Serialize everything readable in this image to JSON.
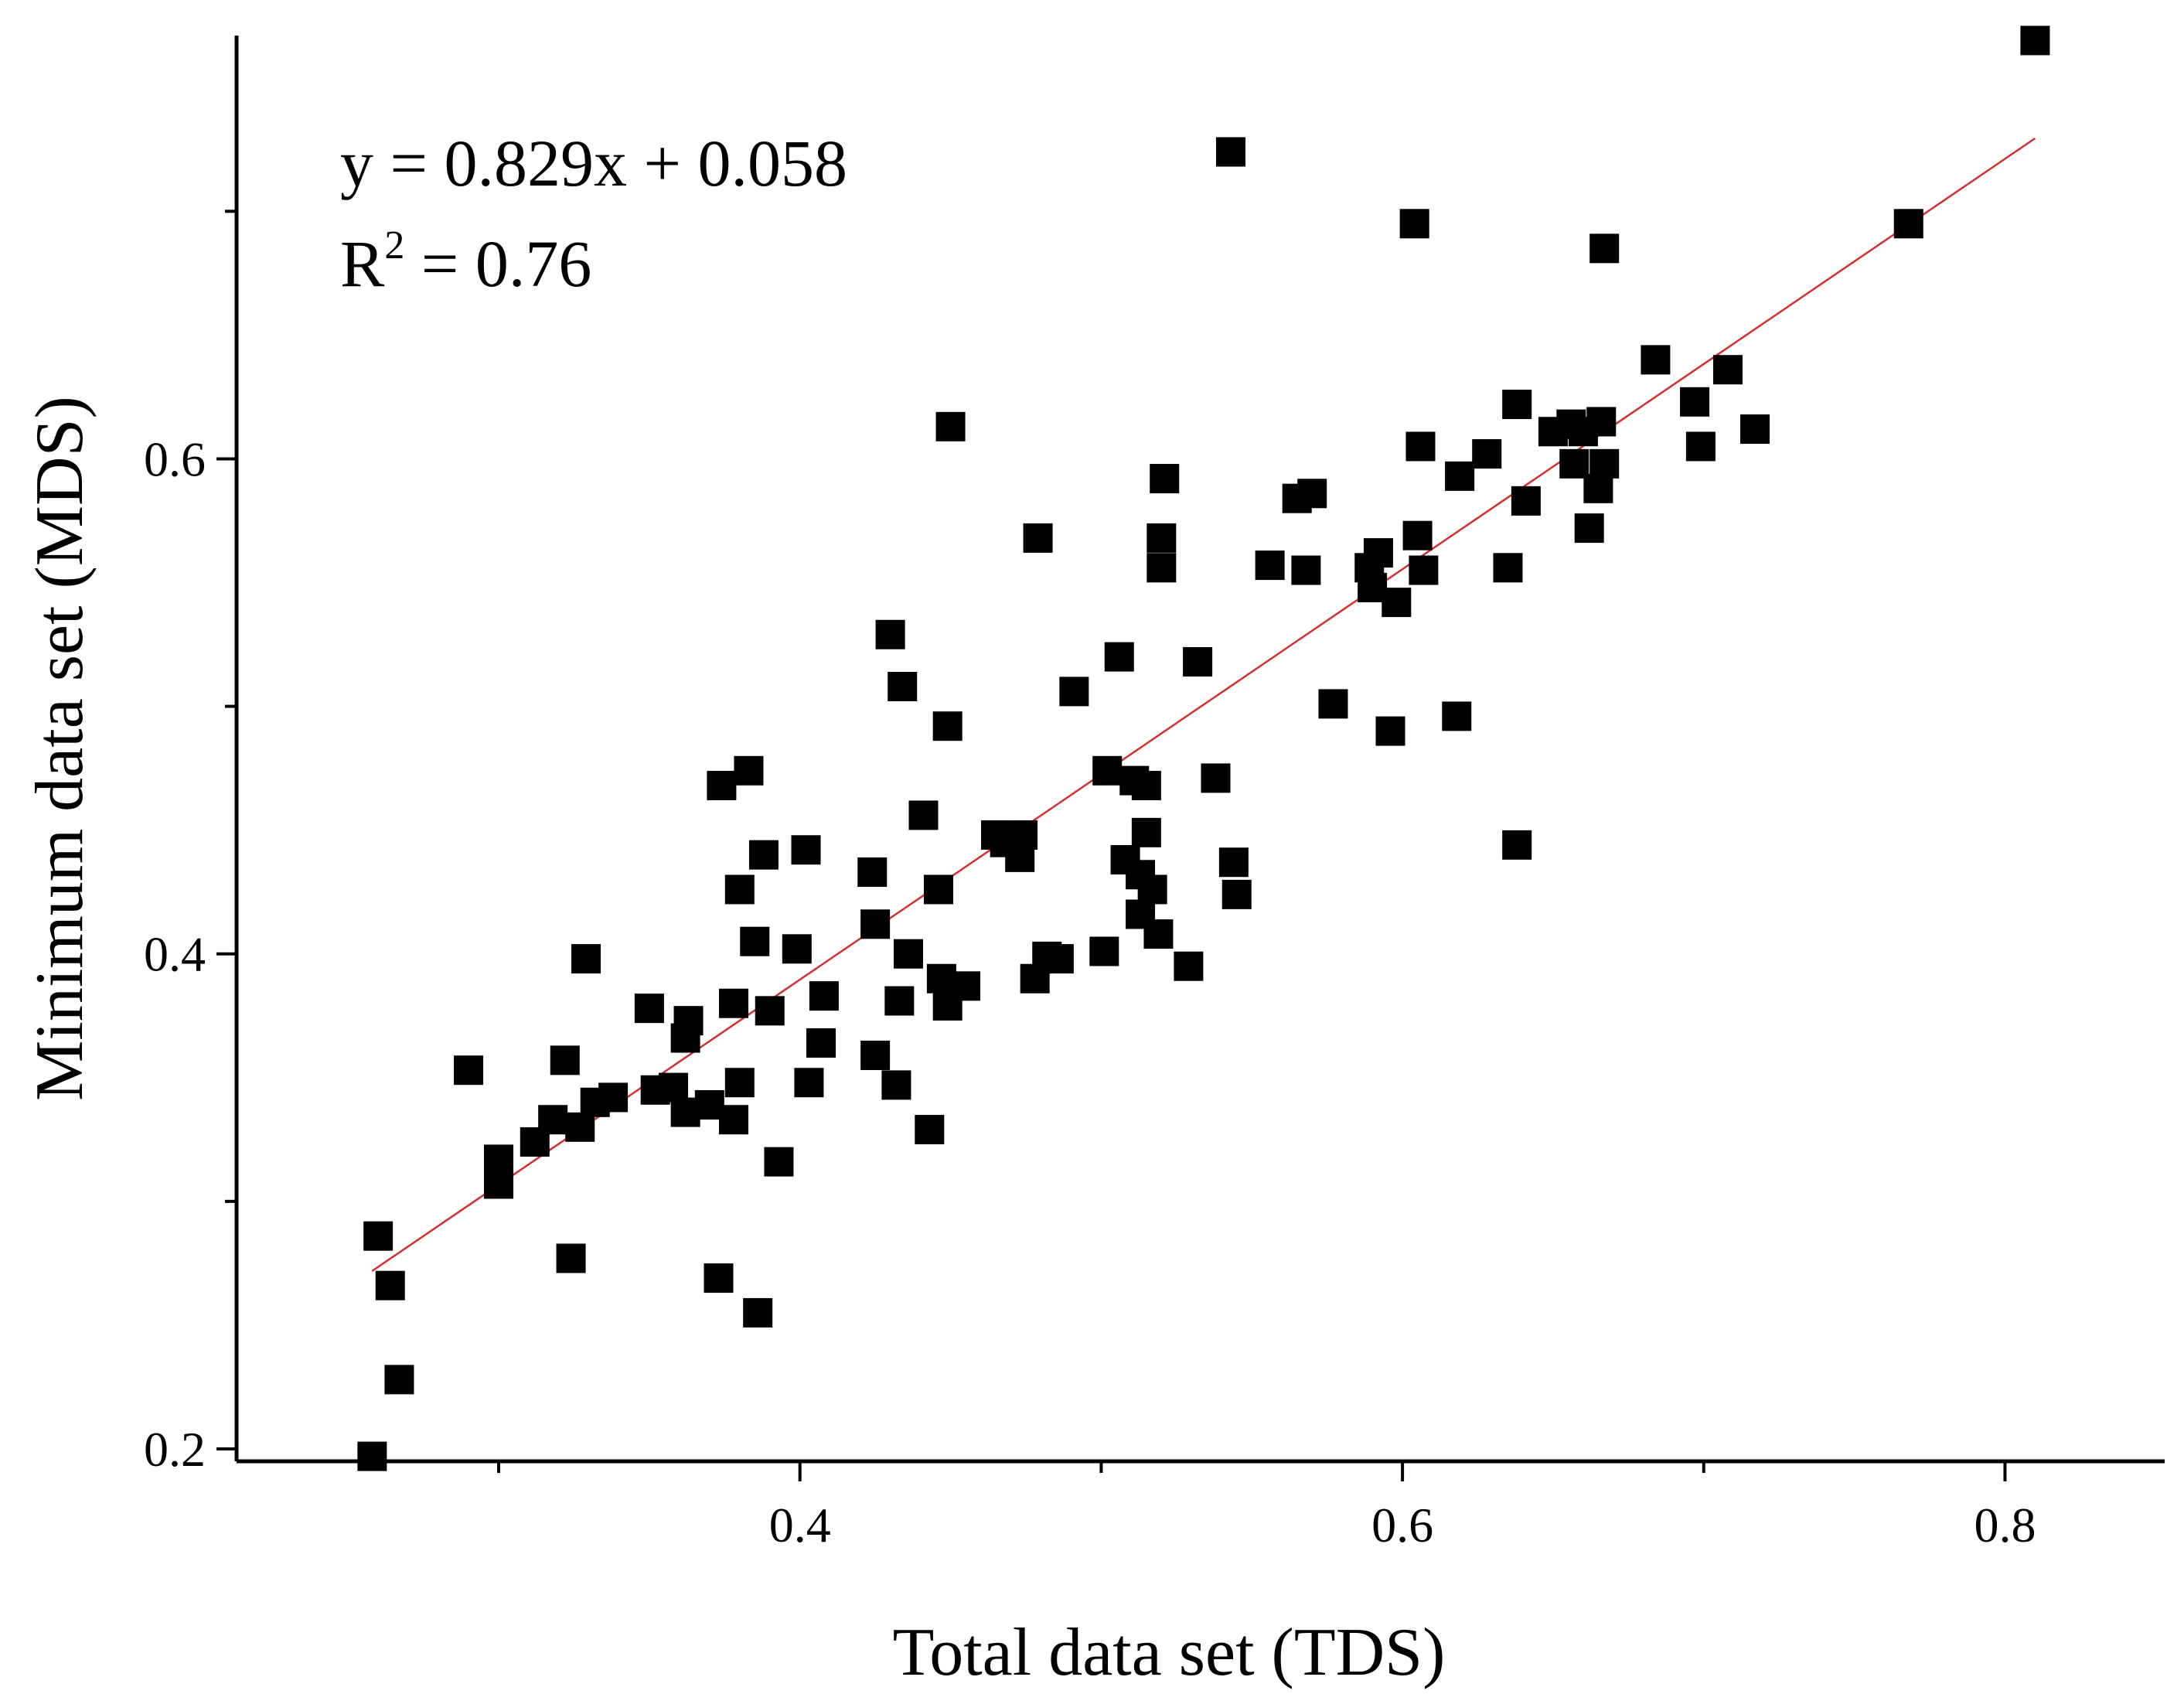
{
  "chart_data": {
    "type": "scatter",
    "xlabel": "Total data set (TDS)",
    "ylabel": "Minimum data set (MDS)",
    "xlim": [
      0.213,
      0.853
    ],
    "ylim": [
      0.195,
      0.771
    ],
    "x_ticks": {
      "major": [
        0.4,
        0.6,
        0.8
      ],
      "minor": [
        0.3,
        0.5,
        0.7
      ]
    },
    "y_ticks": {
      "major": [
        0.2,
        0.4,
        0.6
      ],
      "minor": [
        0.3,
        0.5,
        0.7
      ]
    },
    "x_tick_labels": [
      "0.4",
      "0.6",
      "0.8"
    ],
    "y_tick_labels": [
      "0.2",
      "0.4",
      "0.6"
    ],
    "annotation": {
      "equation": "y = 0.829x + 0.058",
      "r2_prefix": "R",
      "r2_exp": "2",
      "r2_value": " = 0.76"
    },
    "fit": {
      "slope": 0.829,
      "intercept": 0.058,
      "x_range": [
        0.258,
        0.81
      ],
      "color": "#d32f2f"
    },
    "marker_color": "#000000",
    "points": [
      [
        0.258,
        0.197
      ],
      [
        0.26,
        0.286
      ],
      [
        0.264,
        0.266
      ],
      [
        0.267,
        0.228
      ],
      [
        0.29,
        0.353
      ],
      [
        0.3,
        0.317
      ],
      [
        0.3,
        0.307
      ],
      [
        0.312,
        0.324
      ],
      [
        0.318,
        0.333
      ],
      [
        0.322,
        0.357
      ],
      [
        0.324,
        0.277
      ],
      [
        0.327,
        0.33
      ],
      [
        0.329,
        0.398
      ],
      [
        0.332,
        0.34
      ],
      [
        0.338,
        0.342
      ],
      [
        0.35,
        0.378
      ],
      [
        0.352,
        0.345
      ],
      [
        0.358,
        0.346
      ],
      [
        0.362,
        0.336
      ],
      [
        0.362,
        0.366
      ],
      [
        0.363,
        0.373
      ],
      [
        0.37,
        0.339
      ],
      [
        0.373,
        0.269
      ],
      [
        0.374,
        0.468
      ],
      [
        0.378,
        0.333
      ],
      [
        0.378,
        0.38
      ],
      [
        0.38,
        0.348
      ],
      [
        0.38,
        0.426
      ],
      [
        0.383,
        0.474
      ],
      [
        0.385,
        0.405
      ],
      [
        0.386,
        0.255
      ],
      [
        0.388,
        0.44
      ],
      [
        0.39,
        0.377
      ],
      [
        0.393,
        0.316
      ],
      [
        0.399,
        0.402
      ],
      [
        0.402,
        0.442
      ],
      [
        0.403,
        0.348
      ],
      [
        0.407,
        0.364
      ],
      [
        0.408,
        0.383
      ],
      [
        0.424,
        0.433
      ],
      [
        0.425,
        0.412
      ],
      [
        0.425,
        0.359
      ],
      [
        0.43,
        0.529
      ],
      [
        0.432,
        0.347
      ],
      [
        0.433,
        0.381
      ],
      [
        0.434,
        0.508
      ],
      [
        0.436,
        0.4
      ],
      [
        0.441,
        0.456
      ],
      [
        0.443,
        0.329
      ],
      [
        0.446,
        0.426
      ],
      [
        0.447,
        0.39
      ],
      [
        0.449,
        0.492
      ],
      [
        0.449,
        0.379
      ],
      [
        0.45,
        0.613
      ],
      [
        0.455,
        0.387
      ],
      [
        0.465,
        0.448
      ],
      [
        0.468,
        0.445
      ],
      [
        0.473,
        0.439
      ],
      [
        0.474,
        0.448
      ],
      [
        0.478,
        0.39
      ],
      [
        0.479,
        0.568
      ],
      [
        0.482,
        0.399
      ],
      [
        0.486,
        0.398
      ],
      [
        0.491,
        0.506
      ],
      [
        0.501,
        0.401
      ],
      [
        0.502,
        0.474
      ],
      [
        0.506,
        0.52
      ],
      [
        0.508,
        0.438
      ],
      [
        0.511,
        0.47
      ],
      [
        0.513,
        0.432
      ],
      [
        0.513,
        0.416
      ],
      [
        0.515,
        0.468
      ],
      [
        0.515,
        0.449
      ],
      [
        0.517,
        0.426
      ],
      [
        0.519,
        0.408
      ],
      [
        0.52,
        0.556
      ],
      [
        0.521,
        0.592
      ],
      [
        0.52,
        0.568
      ],
      [
        0.529,
        0.395
      ],
      [
        0.532,
        0.518
      ],
      [
        0.538,
        0.471
      ],
      [
        0.543,
        0.724
      ],
      [
        0.544,
        0.437
      ],
      [
        0.545,
        0.424
      ],
      [
        0.556,
        0.557
      ],
      [
        0.565,
        0.584
      ],
      [
        0.568,
        0.555
      ],
      [
        0.57,
        0.586
      ],
      [
        0.577,
        0.501
      ],
      [
        0.589,
        0.556
      ],
      [
        0.59,
        0.548
      ],
      [
        0.592,
        0.562
      ],
      [
        0.596,
        0.49
      ],
      [
        0.598,
        0.542
      ],
      [
        0.604,
        0.695
      ],
      [
        0.605,
        0.569
      ],
      [
        0.606,
        0.605
      ],
      [
        0.607,
        0.555
      ],
      [
        0.618,
        0.496
      ],
      [
        0.619,
        0.593
      ],
      [
        0.628,
        0.602
      ],
      [
        0.635,
        0.556
      ],
      [
        0.638,
        0.444
      ],
      [
        0.638,
        0.622
      ],
      [
        0.641,
        0.583
      ],
      [
        0.65,
        0.611
      ],
      [
        0.656,
        0.614
      ],
      [
        0.657,
        0.598
      ],
      [
        0.66,
        0.611
      ],
      [
        0.662,
        0.572
      ],
      [
        0.665,
        0.588
      ],
      [
        0.666,
        0.615
      ],
      [
        0.667,
        0.598
      ],
      [
        0.667,
        0.685
      ],
      [
        0.684,
        0.64
      ],
      [
        0.697,
        0.623
      ],
      [
        0.699,
        0.605
      ],
      [
        0.708,
        0.636
      ],
      [
        0.717,
        0.612
      ],
      [
        0.768,
        0.695
      ],
      [
        0.81,
        0.769
      ]
    ]
  }
}
